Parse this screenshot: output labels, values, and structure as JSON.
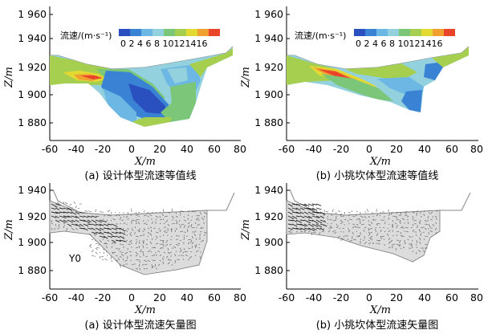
{
  "panels": [
    {
      "id": "a",
      "kind": "contour",
      "caption": "(a) 设计体型流速等值线",
      "ylabel": "Z/m",
      "xlabel": "X/m",
      "yticks": [
        "1 960",
        "1 940",
        "1 920",
        "1 900",
        "1 880"
      ],
      "xticks": [
        "-60",
        "-40",
        "-20",
        "0",
        "20",
        "40",
        "60",
        "80"
      ],
      "legend_title": "流速/(m·s⁻¹)",
      "legend_values": "0 2 4 6 8 10121416"
    },
    {
      "id": "b",
      "kind": "contour",
      "caption": "(b) 小挑坎体型流速等值线",
      "ylabel": "Z/m",
      "xlabel": "X/m",
      "yticks": [
        "1 960",
        "1 940",
        "1 920",
        "1 900",
        "1 880"
      ],
      "xticks": [
        "-60",
        "-40",
        "-20",
        "0",
        "20",
        "40",
        "60",
        "80"
      ],
      "legend_title": "流速/(m·s⁻¹)",
      "legend_values": "0 2 4 6 8 10121416"
    },
    {
      "id": "c",
      "kind": "vector",
      "caption": "(a) 设计体型流速矢量图",
      "ylabel": "Z/m",
      "xlabel": "X/m",
      "yticks": [
        "1 940",
        "1 920",
        "1 900",
        "1 880"
      ],
      "xticks": [
        "-60",
        "-40",
        "-20",
        "0",
        "20",
        "40",
        "60",
        "80"
      ],
      "annotation": "Y0"
    },
    {
      "id": "d",
      "kind": "vector",
      "caption": "(b) 小挑坎体型流速矢量图",
      "ylabel": "Z/m",
      "xlabel": "X/m",
      "yticks": [
        "1 940",
        "1 920",
        "1 900",
        "1 880"
      ],
      "xticks": [
        "-60",
        "-40",
        "-20",
        "0",
        "20",
        "40",
        "60",
        "80"
      ]
    }
  ],
  "colors": {
    "legend_scale": [
      "#2a4fbf",
      "#3a83d4",
      "#6cb7e3",
      "#93d1df",
      "#7cc67a",
      "#a6cf4f",
      "#e3d933",
      "#f0a030",
      "#e8452b"
    ]
  }
}
